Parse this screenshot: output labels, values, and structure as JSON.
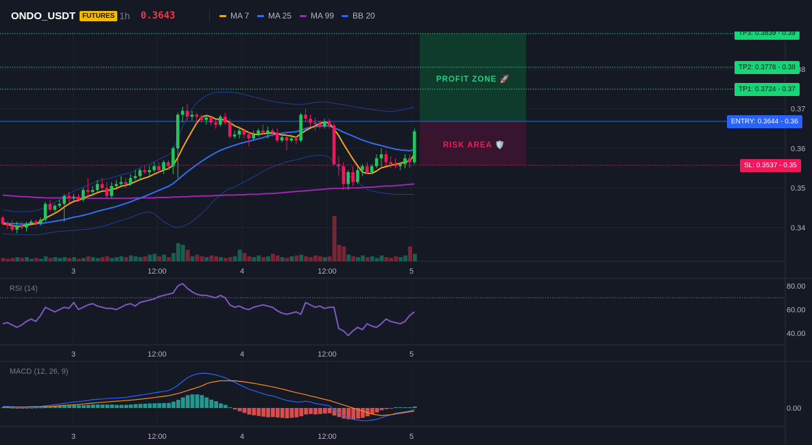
{
  "header": {
    "symbol": "ONDO_USDT",
    "badge": "FUTURES",
    "interval": "1h",
    "last_price": "0.3643",
    "indicators": [
      {
        "label": "MA 7",
        "color": "#f7a21b"
      },
      {
        "label": "MA 25",
        "color": "#2f6fed"
      },
      {
        "label": "MA 99",
        "color": "#9c27b0"
      },
      {
        "label": "BB 20",
        "color": "#2962ff"
      }
    ]
  },
  "colors": {
    "background": "#151924",
    "up": "#22c55e",
    "down": "#f0185a",
    "profit_zone": "#0f3d2e",
    "risk_zone": "#3a1530",
    "entry": "#2962ff",
    "tp": "#16d67a",
    "sl": "#f0185a",
    "rsi": "#7e57c2",
    "macd_line": "#2962ff",
    "signal_line": "#ff8c1a"
  },
  "price_axis": {
    "labels": [
      "0.38",
      "0.37",
      "0.36",
      "0.35",
      "0.34"
    ]
  },
  "time_axis": {
    "labels": [
      "3",
      "12:00",
      "4",
      "12:00",
      "5"
    ]
  },
  "trade_levels": [
    {
      "label": "TP3: 0.3839 - 0.39",
      "kind": "tp"
    },
    {
      "label": "TP2: 0.3778 - 0.38",
      "kind": "tp"
    },
    {
      "label": "TP1: 0.3724 - 0.37",
      "kind": "tp"
    },
    {
      "label": "ENTRY: 0.3644 - 0.36",
      "kind": "entry"
    },
    {
      "label": "SL: 0.3537 - 0.35",
      "kind": "sl"
    }
  ],
  "zones": {
    "profit": "PROFIT ZONE 🚀",
    "risk": "RISK AREA 🛡️"
  },
  "rsi": {
    "label": "RSI (14)",
    "axis_labels": [
      "80.00",
      "60.00",
      "40.00"
    ]
  },
  "macd": {
    "label": "MACD (12, 26, 9)",
    "axis_labels": [
      "0.00"
    ]
  },
  "chart_data": {
    "type": "candlestick",
    "title": "",
    "ylim": [
      0.3315,
      0.3895
    ],
    "x_tick_labels": [
      "3",
      "12:00",
      "4",
      "12:00",
      "5"
    ],
    "candles": [
      [
        0.3425,
        0.343,
        0.3405,
        0.341
      ],
      [
        0.341,
        0.3415,
        0.3395,
        0.3405
      ],
      [
        0.3405,
        0.342,
        0.339,
        0.3395
      ],
      [
        0.3395,
        0.3415,
        0.3385,
        0.3405
      ],
      [
        0.3405,
        0.3415,
        0.3395,
        0.34
      ],
      [
        0.34,
        0.3415,
        0.339,
        0.341
      ],
      [
        0.341,
        0.342,
        0.3405,
        0.3415
      ],
      [
        0.3415,
        0.342,
        0.3405,
        0.341
      ],
      [
        0.341,
        0.3425,
        0.3405,
        0.342
      ],
      [
        0.342,
        0.3465,
        0.3415,
        0.346
      ],
      [
        0.346,
        0.347,
        0.344,
        0.3445
      ],
      [
        0.3445,
        0.346,
        0.344,
        0.3455
      ],
      [
        0.3455,
        0.347,
        0.345,
        0.346
      ],
      [
        0.346,
        0.3485,
        0.3415,
        0.348
      ],
      [
        0.348,
        0.349,
        0.346,
        0.3475
      ],
      [
        0.3475,
        0.3485,
        0.3465,
        0.3478
      ],
      [
        0.3478,
        0.3485,
        0.3465,
        0.347
      ],
      [
        0.347,
        0.35,
        0.3465,
        0.3495
      ],
      [
        0.3495,
        0.3525,
        0.348,
        0.349
      ],
      [
        0.349,
        0.3505,
        0.348,
        0.3495
      ],
      [
        0.3495,
        0.352,
        0.349,
        0.351
      ],
      [
        0.351,
        0.3525,
        0.3495,
        0.35
      ],
      [
        0.35,
        0.3515,
        0.3475,
        0.348
      ],
      [
        0.348,
        0.3515,
        0.3475,
        0.3505
      ],
      [
        0.3505,
        0.352,
        0.3495,
        0.351
      ],
      [
        0.351,
        0.353,
        0.3505,
        0.3515
      ],
      [
        0.3515,
        0.3525,
        0.35,
        0.351
      ],
      [
        0.351,
        0.3535,
        0.3505,
        0.3525
      ],
      [
        0.3525,
        0.3545,
        0.352,
        0.353
      ],
      [
        0.353,
        0.355,
        0.352,
        0.3545
      ],
      [
        0.3545,
        0.3555,
        0.3535,
        0.354
      ],
      [
        0.354,
        0.3555,
        0.353,
        0.3545
      ],
      [
        0.3545,
        0.3565,
        0.354,
        0.3555
      ],
      [
        0.3555,
        0.3565,
        0.354,
        0.3545
      ],
      [
        0.3545,
        0.357,
        0.3535,
        0.3565
      ],
      [
        0.3565,
        0.357,
        0.3545,
        0.3555
      ],
      [
        0.3555,
        0.3605,
        0.3535,
        0.36
      ],
      [
        0.36,
        0.369,
        0.3525,
        0.3685
      ],
      [
        0.3685,
        0.3705,
        0.3665,
        0.3695
      ],
      [
        0.3695,
        0.3712,
        0.367,
        0.368
      ],
      [
        0.368,
        0.3695,
        0.367,
        0.3685
      ],
      [
        0.3685,
        0.369,
        0.3665,
        0.368
      ],
      [
        0.368,
        0.3685,
        0.3665,
        0.3672
      ],
      [
        0.3672,
        0.3685,
        0.366,
        0.3678
      ],
      [
        0.3678,
        0.3682,
        0.3658,
        0.3665
      ],
      [
        0.3665,
        0.3672,
        0.365,
        0.366
      ],
      [
        0.366,
        0.3685,
        0.3655,
        0.368
      ],
      [
        0.368,
        0.369,
        0.366,
        0.3665
      ],
      [
        0.3665,
        0.3675,
        0.3625,
        0.363
      ],
      [
        0.363,
        0.3645,
        0.3625,
        0.3635
      ],
      [
        0.3635,
        0.3655,
        0.3625,
        0.3645
      ],
      [
        0.3645,
        0.365,
        0.3625,
        0.3635
      ],
      [
        0.3635,
        0.3642,
        0.3605,
        0.3625
      ],
      [
        0.3625,
        0.3645,
        0.362,
        0.3635
      ],
      [
        0.3635,
        0.365,
        0.363,
        0.3645
      ],
      [
        0.3645,
        0.366,
        0.3635,
        0.364
      ],
      [
        0.364,
        0.3655,
        0.3625,
        0.3645
      ],
      [
        0.3645,
        0.365,
        0.363,
        0.364
      ],
      [
        0.364,
        0.365,
        0.3615,
        0.362
      ],
      [
        0.362,
        0.3635,
        0.3615,
        0.3628
      ],
      [
        0.3628,
        0.363,
        0.3595,
        0.362
      ],
      [
        0.362,
        0.3635,
        0.3615,
        0.3625
      ],
      [
        0.3625,
        0.363,
        0.361,
        0.362
      ],
      [
        0.362,
        0.369,
        0.3615,
        0.3685
      ],
      [
        0.3685,
        0.37,
        0.3665,
        0.3675
      ],
      [
        0.3675,
        0.3685,
        0.3655,
        0.3665
      ],
      [
        0.3665,
        0.3678,
        0.3645,
        0.3662
      ],
      [
        0.3662,
        0.367,
        0.365,
        0.3655
      ],
      [
        0.3655,
        0.3675,
        0.365,
        0.3668
      ],
      [
        0.3668,
        0.3675,
        0.365,
        0.3658
      ],
      [
        0.3658,
        0.3665,
        0.3555,
        0.356
      ],
      [
        0.356,
        0.358,
        0.353,
        0.3555
      ],
      [
        0.3555,
        0.3565,
        0.3495,
        0.351
      ],
      [
        0.351,
        0.3545,
        0.3495,
        0.354
      ],
      [
        0.354,
        0.3555,
        0.3505,
        0.3515
      ],
      [
        0.3515,
        0.3555,
        0.351,
        0.3545
      ],
      [
        0.3545,
        0.356,
        0.353,
        0.3555
      ],
      [
        0.3555,
        0.3565,
        0.3535,
        0.354
      ],
      [
        0.354,
        0.356,
        0.3535,
        0.3555
      ],
      [
        0.3555,
        0.3585,
        0.355,
        0.3575
      ],
      [
        0.3575,
        0.36,
        0.3555,
        0.3585
      ],
      [
        0.3585,
        0.3595,
        0.3555,
        0.3565
      ],
      [
        0.3565,
        0.358,
        0.355,
        0.356
      ],
      [
        0.356,
        0.3575,
        0.355,
        0.3555
      ],
      [
        0.3555,
        0.3565,
        0.3545,
        0.356
      ],
      [
        0.356,
        0.3585,
        0.355,
        0.3575
      ],
      [
        0.3575,
        0.3585,
        0.355,
        0.3565
      ],
      [
        0.3565,
        0.365,
        0.356,
        0.3643
      ]
    ],
    "volume": [
      4,
      3,
      4,
      5,
      4,
      5,
      3,
      4,
      3,
      6,
      4,
      5,
      4,
      5,
      4,
      5,
      3,
      4,
      6,
      5,
      4,
      5,
      6,
      4,
      5,
      6,
      5,
      7,
      6,
      5,
      6,
      8,
      9,
      6,
      8,
      5,
      10,
      22,
      20,
      14,
      6,
      8,
      6,
      5,
      7,
      6,
      5,
      4,
      5,
      6,
      14,
      10,
      6,
      5,
      7,
      5,
      6,
      9,
      7,
      5,
      4,
      6,
      7,
      8,
      6,
      5,
      7,
      6,
      5,
      6,
      55,
      20,
      18,
      8,
      6,
      5,
      7,
      5,
      6,
      4,
      7,
      5,
      4,
      6,
      5,
      7,
      18,
      9
    ],
    "ma7": [
      0.341,
      0.3408,
      0.3405,
      0.3403,
      0.3404,
      0.3406,
      0.3408,
      0.341,
      0.3415,
      0.3424,
      0.343,
      0.3436,
      0.3443,
      0.3452,
      0.346,
      0.3466,
      0.3469,
      0.3474,
      0.3479,
      0.3483,
      0.3488,
      0.3492,
      0.3493,
      0.3496,
      0.3499,
      0.3504,
      0.3507,
      0.351,
      0.3516,
      0.3521,
      0.3525,
      0.3529,
      0.3535,
      0.354,
      0.3545,
      0.3549,
      0.3557,
      0.3577,
      0.3601,
      0.3623,
      0.3644,
      0.3664,
      0.3679,
      0.3683,
      0.368,
      0.3674,
      0.3673,
      0.3672,
      0.3665,
      0.3657,
      0.3652,
      0.3646,
      0.364,
      0.3636,
      0.3635,
      0.3637,
      0.3638,
      0.3639,
      0.3637,
      0.3634,
      0.3633,
      0.3631,
      0.3628,
      0.3637,
      0.3645,
      0.3651,
      0.3657,
      0.3663,
      0.3666,
      0.3664,
      0.3649,
      0.3632,
      0.3611,
      0.3592,
      0.3573,
      0.3556,
      0.354,
      0.3537,
      0.3537,
      0.3543,
      0.3551,
      0.3554,
      0.3557,
      0.356,
      0.3562,
      0.3566,
      0.3568,
      0.3585
    ],
    "ma25": [
      0.3412,
      0.3411,
      0.341,
      0.341,
      0.3409,
      0.3409,
      0.341,
      0.341,
      0.341,
      0.3412,
      0.3414,
      0.3416,
      0.3418,
      0.342,
      0.3423,
      0.3426,
      0.3428,
      0.3431,
      0.3434,
      0.3437,
      0.3441,
      0.3444,
      0.3447,
      0.345,
      0.3453,
      0.3457,
      0.3461,
      0.3465,
      0.347,
      0.3474,
      0.3479,
      0.3484,
      0.3489,
      0.3494,
      0.3499,
      0.3504,
      0.3511,
      0.3521,
      0.3531,
      0.3541,
      0.355,
      0.3559,
      0.3567,
      0.3575,
      0.3582,
      0.3589,
      0.3595,
      0.36,
      0.3604,
      0.3608,
      0.3612,
      0.3615,
      0.3618,
      0.3621,
      0.3624,
      0.3627,
      0.3631,
      0.3634,
      0.3636,
      0.3638,
      0.364,
      0.3641,
      0.3642,
      0.3646,
      0.365,
      0.3653,
      0.3655,
      0.3656,
      0.3657,
      0.3657,
      0.3652,
      0.3647,
      0.3641,
      0.3636,
      0.3631,
      0.3626,
      0.3621,
      0.3617,
      0.3613,
      0.361,
      0.3607,
      0.3604,
      0.3601,
      0.3598,
      0.3596,
      0.3595,
      0.3594,
      0.3597
    ],
    "ma99": [
      0.3482,
      0.3481,
      0.348,
      0.3479,
      0.3478,
      0.3478,
      0.3477,
      0.3476,
      0.3476,
      0.3475,
      0.3475,
      0.3475,
      0.3475,
      0.3475,
      0.3475,
      0.3475,
      0.3474,
      0.3474,
      0.3474,
      0.3474,
      0.3474,
      0.3474,
      0.3474,
      0.3474,
      0.3474,
      0.3474,
      0.3474,
      0.3474,
      0.3475,
      0.3475,
      0.3475,
      0.3475,
      0.3475,
      0.3476,
      0.3476,
      0.3476,
      0.3477,
      0.3477,
      0.3478,
      0.3478,
      0.3479,
      0.3479,
      0.348,
      0.348,
      0.348,
      0.3481,
      0.3481,
      0.3482,
      0.3482,
      0.3482,
      0.3483,
      0.3483,
      0.3484,
      0.3484,
      0.3484,
      0.3485,
      0.3486,
      0.3486,
      0.3487,
      0.3488,
      0.3489,
      0.349,
      0.3491,
      0.3492,
      0.3493,
      0.3494,
      0.3495,
      0.3496,
      0.3497,
      0.3498,
      0.3499,
      0.3499,
      0.3499,
      0.35,
      0.35,
      0.35,
      0.3501,
      0.3502,
      0.3502,
      0.3503,
      0.3504,
      0.3505,
      0.3505,
      0.3506,
      0.3507,
      0.3508,
      0.3509,
      0.351
    ],
    "bb_upper": [
      0.3445,
      0.3443,
      0.3441,
      0.344,
      0.344,
      0.344,
      0.3441,
      0.3443,
      0.3446,
      0.3452,
      0.3458,
      0.3464,
      0.347,
      0.3478,
      0.3486,
      0.3492,
      0.3497,
      0.3502,
      0.3507,
      0.3512,
      0.3517,
      0.3521,
      0.3523,
      0.3526,
      0.3529,
      0.3533,
      0.3536,
      0.3539,
      0.3545,
      0.3551,
      0.3556,
      0.356,
      0.3566,
      0.3572,
      0.3578,
      0.3583,
      0.3595,
      0.3625,
      0.3655,
      0.368,
      0.37,
      0.3715,
      0.3725,
      0.3733,
      0.3738,
      0.3741,
      0.3742,
      0.3742,
      0.3742,
      0.3741,
      0.3739,
      0.3736,
      0.3733,
      0.373,
      0.3727,
      0.3724,
      0.3721,
      0.3719,
      0.3717,
      0.3715,
      0.3713,
      0.3712,
      0.3711,
      0.3711,
      0.3712,
      0.3714,
      0.3716,
      0.3717,
      0.3717,
      0.3716,
      0.3714,
      0.3712,
      0.371,
      0.3708,
      0.3706,
      0.3704,
      0.3702,
      0.37,
      0.3698,
      0.3696,
      0.3695,
      0.3694,
      0.3693,
      0.3694,
      0.3696,
      0.3698,
      0.3702,
      0.3705
    ],
    "bb_lower": [
      0.3385,
      0.3384,
      0.3383,
      0.3382,
      0.3382,
      0.3382,
      0.3382,
      0.3382,
      0.3383,
      0.3385,
      0.3387,
      0.3389,
      0.339,
      0.3391,
      0.3392,
      0.3393,
      0.3394,
      0.3395,
      0.3396,
      0.3398,
      0.34,
      0.3403,
      0.3406,
      0.341,
      0.3414,
      0.3418,
      0.3422,
      0.3425,
      0.343,
      0.3435,
      0.3438,
      0.344,
      0.3435,
      0.3425,
      0.3415,
      0.3408,
      0.3402,
      0.34,
      0.3403,
      0.3408,
      0.3415,
      0.3425,
      0.3435,
      0.3447,
      0.346,
      0.3472,
      0.3483,
      0.3492,
      0.3498,
      0.3503,
      0.3509,
      0.3515,
      0.3522,
      0.3528,
      0.3535,
      0.3542,
      0.3548,
      0.3553,
      0.3558,
      0.3562,
      0.3566,
      0.3569,
      0.3571,
      0.3574,
      0.3578,
      0.358,
      0.3582,
      0.3583,
      0.3582,
      0.3578,
      0.3565,
      0.355,
      0.354,
      0.3532,
      0.3525,
      0.3515,
      0.3505,
      0.3497,
      0.3492,
      0.349,
      0.3488,
      0.3486,
      0.3485,
      0.3484,
      0.3484,
      0.3484,
      0.3484,
      0.3484
    ],
    "rsi": [
      48,
      49,
      47,
      45,
      47,
      50,
      52,
      50,
      55,
      62,
      60,
      58,
      60,
      62,
      61,
      66,
      60,
      62,
      64,
      65,
      63,
      62,
      61,
      61,
      60,
      62,
      64,
      65,
      63,
      66,
      67,
      68,
      69,
      71,
      72,
      73,
      74,
      80,
      82,
      78,
      75,
      73,
      72,
      72,
      71,
      70,
      72,
      70,
      64,
      62,
      63,
      61,
      60,
      62,
      63,
      64,
      63,
      62,
      59,
      57,
      56,
      57,
      58,
      56,
      66,
      64,
      62,
      63,
      61,
      62,
      62,
      44,
      42,
      38,
      42,
      45,
      43,
      48,
      46,
      45,
      48,
      52,
      50,
      49,
      48,
      50,
      55,
      58
    ],
    "macd": [
      0.0002,
      0.00018,
      0.00015,
      0.00013,
      0.00012,
      0.00014,
      0.00016,
      0.00018,
      0.0002,
      0.0003,
      0.00035,
      0.00045,
      0.0005,
      0.0006,
      0.0007,
      0.0008,
      0.00085,
      0.0009,
      0.001,
      0.0011,
      0.00115,
      0.0012,
      0.00125,
      0.0013,
      0.0013,
      0.00135,
      0.0014,
      0.0015,
      0.0016,
      0.0017,
      0.0018,
      0.0019,
      0.002,
      0.0021,
      0.0022,
      0.0023,
      0.0026,
      0.003,
      0.0035,
      0.004,
      0.0043,
      0.0045,
      0.0046,
      0.0046,
      0.0045,
      0.0044,
      0.0042,
      0.004,
      0.0037,
      0.0034,
      0.0031,
      0.0028,
      0.0025,
      0.0023,
      0.0021,
      0.0019,
      0.0017,
      0.0016,
      0.0014,
      0.0012,
      0.001,
      0.0009,
      0.0008,
      0.0008,
      0.0009,
      0.0008,
      0.0006,
      0.0005,
      0.0004,
      0.0003,
      -0.0002,
      -0.0006,
      -0.001,
      -0.0013,
      -0.0015,
      -0.0016,
      -0.0017,
      -0.0017,
      -0.0016,
      -0.0015,
      -0.0013,
      -0.0011,
      -0.0009,
      -0.0007,
      -0.0006,
      -0.0005,
      -0.0004,
      -0.0002
    ],
    "signal": [
      0.00012,
      0.00012,
      0.00013,
      0.00013,
      0.00013,
      0.00013,
      0.00014,
      0.00014,
      0.00015,
      0.00017,
      0.0002,
      0.00024,
      0.00028,
      0.00033,
      0.00038,
      0.00043,
      0.00048,
      0.00053,
      0.00059,
      0.00065,
      0.0007,
      0.00075,
      0.0008,
      0.00085,
      0.0009,
      0.00094,
      0.00098,
      0.00104,
      0.00109,
      0.00116,
      0.00123,
      0.0013,
      0.00138,
      0.00146,
      0.00155,
      0.00163,
      0.00176,
      0.00192,
      0.0021,
      0.0023,
      0.0025,
      0.0027,
      0.0029,
      0.0032,
      0.0034,
      0.0035,
      0.0036,
      0.0036,
      0.00361,
      0.0036,
      0.00354,
      0.00346,
      0.00337,
      0.00327,
      0.00316,
      0.00305,
      0.00293,
      0.0028,
      0.00266,
      0.00252,
      0.00236,
      0.0022,
      0.00204,
      0.0019,
      0.00176,
      0.0016,
      0.00146,
      0.0013,
      0.00114,
      0.001,
      0.0008,
      0.0006,
      0.0004,
      0.0002,
      0.0,
      -0.0002,
      -0.0004,
      -0.0006,
      -0.0008,
      -0.0009,
      -0.001,
      -0.00095,
      -0.0009,
      -0.0008,
      -0.0007,
      -0.0006,
      -0.0005,
      -0.0004
    ]
  }
}
